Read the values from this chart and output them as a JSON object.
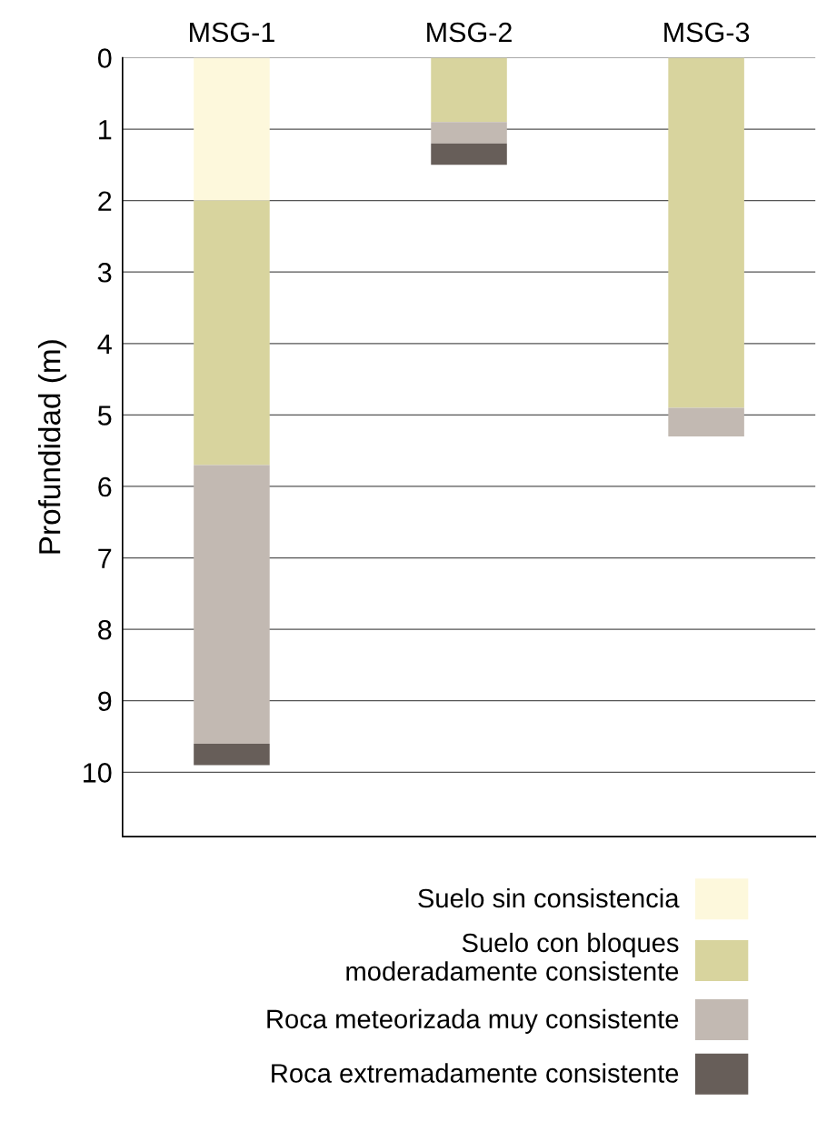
{
  "chart_data": {
    "type": "bar",
    "stacked": true,
    "ylabel": "Profundidad (m)",
    "categories": [
      "MSG-1",
      "MSG-2",
      "MSG-3"
    ],
    "series": [
      {
        "name": "Suelo sin consistencia",
        "color": "#fdf8dc",
        "values": [
          2.0,
          0,
          0
        ]
      },
      {
        "name": "Suelo con bloques\nmoderadamente consistente",
        "color": "#d8d49e",
        "values": [
          3.7,
          0.9,
          4.9
        ]
      },
      {
        "name": "Roca meteorizada muy consistente",
        "color": "#c2b9b2",
        "values": [
          3.9,
          0.3,
          0.4
        ]
      },
      {
        "name": "Roca extremadamente consistente",
        "color": "#675e59",
        "values": [
          0.3,
          0.3,
          0
        ]
      }
    ],
    "ylim": [
      10.9,
      0
    ],
    "yticks": [
      0,
      1,
      2,
      3,
      4,
      5,
      6,
      7,
      8,
      9,
      10
    ],
    "grid": "y",
    "legend": "bottom"
  }
}
